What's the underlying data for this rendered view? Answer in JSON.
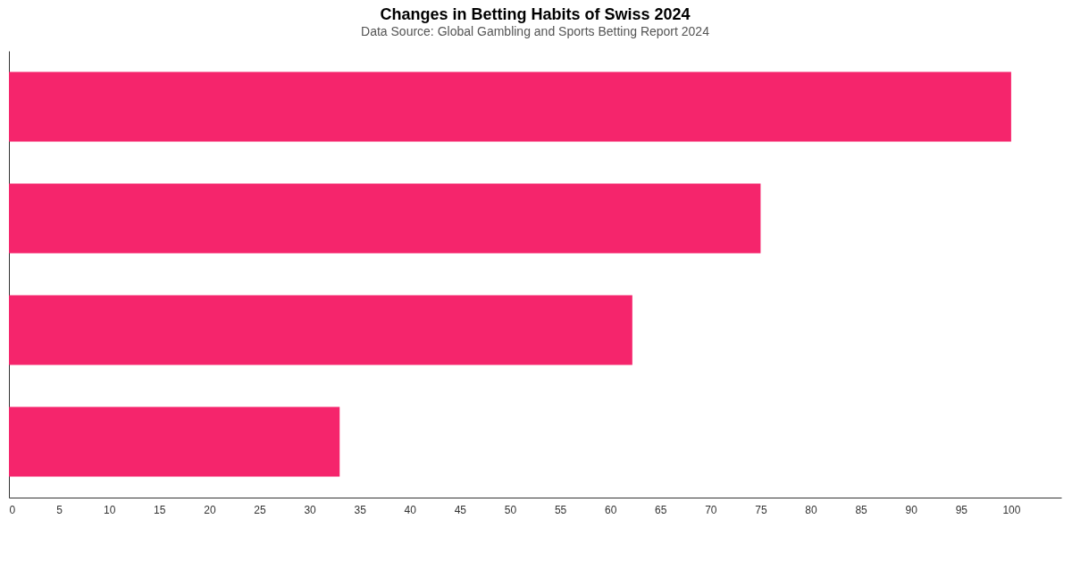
{
  "chart_data": {
    "type": "bar",
    "orientation": "horizontal",
    "title": "Changes in Betting Habits of Swiss 2024",
    "subtitle": "Data Source: Global Gambling and Sports Betting Report 2024",
    "categories": [
      null,
      null,
      null,
      null
    ],
    "values": [
      100,
      75,
      62.2,
      33
    ],
    "color": "#f5256c",
    "xlim": [
      0,
      105
    ],
    "xticks": [
      0,
      5,
      10,
      15,
      20,
      25,
      30,
      35,
      40,
      45,
      50,
      55,
      60,
      65,
      70,
      75,
      80,
      85,
      90,
      95,
      100
    ],
    "grid": false,
    "tick_labels": "x"
  }
}
